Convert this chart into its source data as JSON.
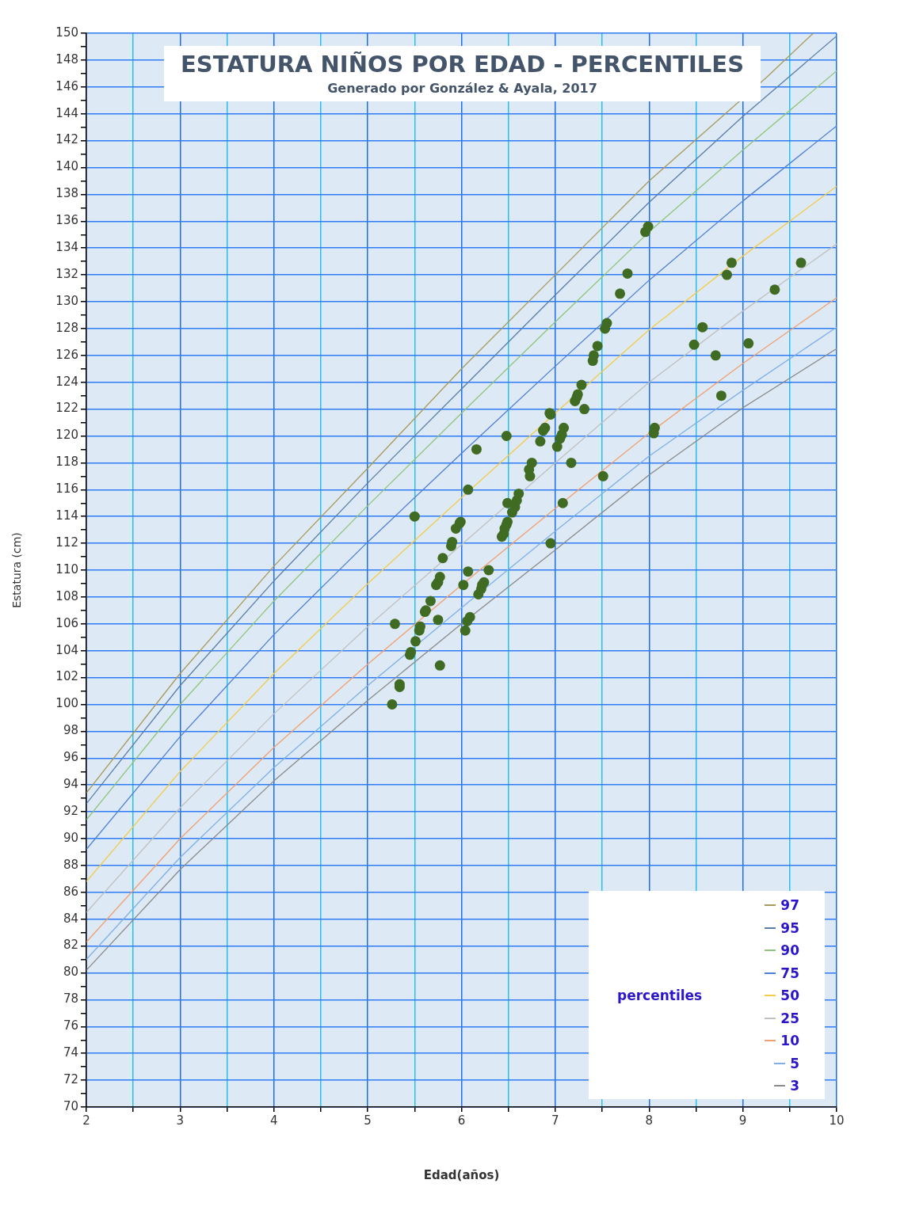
{
  "chart_data": {
    "type": "line",
    "title": "ESTATURA NIÑOS POR EDAD - PERCENTILES",
    "subtitle": "Generado por González & Ayala, 2017",
    "xlabel": "Edad(años)",
    "ylabel": "Estatura (cm)",
    "legend_title": "percentiles",
    "legend": "bottom right",
    "grid": true,
    "xlim": [
      2,
      10
    ],
    "xticks": [
      2,
      {
        "value": 2.5,
        "label": null
      },
      3,
      {
        "value": 3.5,
        "label": null
      },
      4,
      {
        "value": 4.5,
        "label": null
      },
      5,
      {
        "value": 5.5,
        "label": null
      },
      6,
      {
        "value": 6.5,
        "label": null
      },
      7,
      {
        "value": 7.5,
        "label": null
      },
      8,
      {
        "value": 8.5,
        "label": null
      },
      9,
      {
        "value": 9.5,
        "label": null
      },
      10
    ],
    "ylim": [
      70,
      150
    ],
    "yticks": [
      70,
      {
        "value": 71,
        "label": null
      },
      72,
      {
        "value": 73,
        "label": null
      },
      74,
      {
        "value": 75,
        "label": null
      },
      76,
      {
        "value": 77,
        "label": null
      },
      78,
      {
        "value": 79,
        "label": null
      },
      80,
      {
        "value": 81,
        "label": null
      },
      82,
      {
        "value": 83,
        "label": null
      },
      84,
      {
        "value": 85,
        "label": null
      },
      86,
      {
        "value": 87,
        "label": null
      },
      88,
      {
        "value": 89,
        "label": null
      },
      90,
      {
        "value": 91,
        "label": null
      },
      92,
      {
        "value": 93,
        "label": null
      },
      94,
      {
        "value": 95,
        "label": null
      },
      96,
      {
        "value": 97,
        "label": null
      },
      98,
      {
        "value": 99,
        "label": null
      },
      100,
      {
        "value": 101,
        "label": null
      },
      102,
      {
        "value": 103,
        "label": null
      },
      104,
      {
        "value": 105,
        "label": null
      },
      106,
      {
        "value": 107,
        "label": null
      },
      108,
      {
        "value": 109,
        "label": null
      },
      110,
      {
        "value": 111,
        "label": null
      },
      112,
      {
        "value": 113,
        "label": null
      },
      114,
      {
        "value": 115,
        "label": null
      },
      116,
      {
        "value": 117,
        "label": null
      },
      118,
      {
        "value": 119,
        "label": null
      },
      120,
      {
        "value": 121,
        "label": null
      },
      122,
      {
        "value": 123,
        "label": null
      },
      124,
      {
        "value": 125,
        "label": null
      },
      126,
      {
        "value": 127,
        "label": null
      },
      128,
      {
        "value": 129,
        "label": null
      },
      130,
      {
        "value": 131,
        "label": null
      },
      132,
      {
        "value": 133,
        "label": null
      },
      134,
      {
        "value": 135,
        "label": null
      },
      136,
      {
        "value": 137,
        "label": null
      },
      138,
      {
        "value": 139,
        "label": null
      },
      140,
      {
        "value": 141,
        "label": null
      },
      142,
      {
        "value": 143,
        "label": null
      },
      144,
      {
        "value": 145,
        "label": null
      },
      146,
      {
        "value": 147,
        "label": null
      },
      148,
      {
        "value": 149,
        "label": null
      },
      150
    ],
    "x": [
      2,
      3,
      4,
      5,
      6,
      7,
      8,
      9,
      10
    ],
    "series": [
      {
        "name": "97",
        "color": "#a89a5a",
        "x": [
          2,
          3,
          4,
          5,
          6,
          7,
          8,
          9.25,
          9.75
        ],
        "values": [
          93.4,
          102.3,
          110.3,
          117.6,
          125.0,
          132.0,
          139.0,
          146.7,
          150.0
        ]
      },
      {
        "name": "95",
        "color": "#5a7ea8",
        "values": [
          92.6,
          101.4,
          109.2,
          116.5,
          123.5,
          130.5,
          137.4,
          143.8,
          149.8
        ]
      },
      {
        "name": "90",
        "color": "#8fc47a",
        "values": [
          91.4,
          100.0,
          107.7,
          114.8,
          121.7,
          128.5,
          135.2,
          141.3,
          147.2
        ]
      },
      {
        "name": "75",
        "color": "#4f7fd6",
        "values": [
          89.2,
          97.6,
          105.2,
          112.1,
          118.7,
          125.2,
          131.6,
          137.5,
          143.1
        ]
      },
      {
        "name": "50",
        "color": "#f2cc4a",
        "values": [
          86.8,
          95.0,
          102.3,
          109.0,
          115.4,
          121.7,
          127.9,
          133.4,
          138.6
        ]
      },
      {
        "name": "25",
        "color": "#c0c0c0",
        "values": [
          84.5,
          92.3,
          99.3,
          105.8,
          111.9,
          118.0,
          124.0,
          129.3,
          134.3
        ]
      },
      {
        "name": "10",
        "color": "#f0a070",
        "values": [
          82.3,
          90.0,
          96.8,
          103.0,
          108.9,
          114.6,
          120.2,
          125.4,
          130.3
        ]
      },
      {
        "name": "5",
        "color": "#7fb0e8",
        "values": [
          81.0,
          88.6,
          95.3,
          101.4,
          107.2,
          112.9,
          118.5,
          123.4,
          128.1
        ]
      },
      {
        "name": "3",
        "color": "#8a8a8a",
        "values": [
          80.2,
          87.7,
          94.3,
          100.3,
          106.0,
          111.5,
          117.1,
          122.1,
          126.5
        ]
      },
      {
        "type": "scatter",
        "color": "#3f6b22",
        "marker": "circle",
        "x": [
          5.26,
          5.34,
          5.34,
          5.29,
          5.45,
          5.46,
          5.51,
          5.55,
          5.56,
          5.61,
          5.62,
          5.67,
          5.75,
          5.77,
          5.73,
          5.75,
          5.77,
          5.8,
          5.89,
          5.9,
          5.94,
          5.98,
          5.99,
          5.5,
          6.02,
          6.04,
          6.06,
          6.09,
          6.07,
          6.07,
          6.16,
          6.18,
          6.21,
          6.22,
          6.24,
          6.29,
          6.43,
          6.45,
          6.46,
          6.48,
          6.49,
          6.49,
          6.54,
          6.57,
          6.59,
          6.61,
          6.48,
          6.73,
          6.72,
          6.75,
          6.84,
          6.87,
          6.89,
          6.95,
          6.94,
          6.95,
          7.02,
          7.05,
          7.07,
          7.09,
          7.08,
          7.17,
          7.21,
          7.23,
          7.24,
          7.28,
          7.31,
          7.4,
          7.41,
          7.45,
          7.51,
          7.53,
          7.55,
          7.69,
          7.77,
          7.96,
          7.99,
          8.05,
          8.06,
          8.48,
          8.57,
          8.71,
          8.77,
          8.83,
          8.88,
          9.06,
          9.34,
          9.62
        ],
        "values": [
          100.0,
          101.3,
          101.5,
          106.0,
          103.7,
          103.9,
          104.7,
          105.5,
          105.8,
          106.9,
          107.0,
          107.7,
          106.3,
          102.9,
          108.9,
          109.1,
          109.5,
          110.9,
          111.8,
          112.1,
          113.1,
          113.5,
          113.6,
          114.0,
          108.9,
          105.5,
          106.2,
          106.5,
          109.9,
          116.0,
          119.0,
          108.2,
          108.6,
          108.9,
          109.1,
          110.0,
          112.5,
          112.7,
          113.1,
          113.4,
          113.6,
          115.0,
          114.3,
          114.7,
          115.2,
          115.7,
          120.0,
          117.0,
          117.5,
          118.0,
          119.6,
          120.4,
          120.6,
          121.6,
          121.7,
          112.0,
          119.2,
          119.8,
          120.1,
          120.6,
          115.0,
          118.0,
          122.6,
          122.9,
          123.1,
          123.8,
          122.0,
          125.6,
          126.0,
          126.7,
          117.0,
          128.0,
          128.4,
          130.6,
          132.1,
          135.2,
          135.6,
          120.2,
          120.6,
          126.8,
          128.1,
          126.0,
          123.0,
          132.0,
          132.9,
          126.9,
          130.9,
          132.9
        ]
      }
    ]
  }
}
